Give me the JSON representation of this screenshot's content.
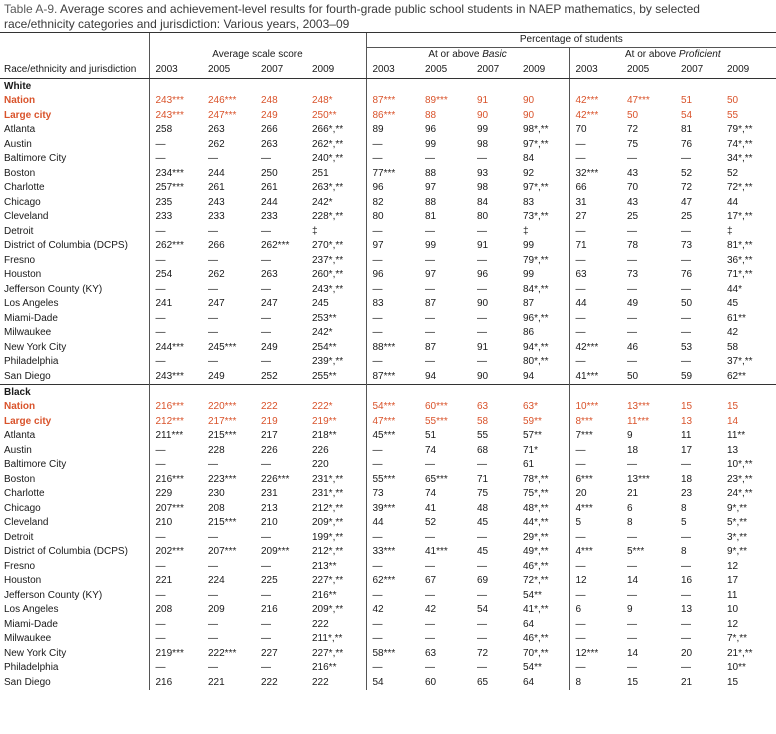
{
  "caption": {
    "table_no": "Table A-9.",
    "title": "Average scores and achievement-level results for fourth-grade public school students in NAEP mathematics, by selected race/ethnicity categories and jurisdiction: Various years, 2003–09"
  },
  "header": {
    "pct_students": "Percentage of students",
    "avg_scale": "Average scale score",
    "basic_prefix": "At or above ",
    "basic_word": "Basic",
    "prof_prefix": "At or above ",
    "prof_word": "Proficient",
    "first_col": "Race/ethnicity and jurisdiction",
    "years": [
      "2003",
      "2005",
      "2007",
      "2009"
    ]
  },
  "groups": [
    {
      "label": "White",
      "rows": [
        {
          "name": "Nation",
          "hl": true,
          "v": [
            "243***",
            "246***",
            "248",
            "248*",
            "87***",
            "89***",
            "91",
            "90",
            "42***",
            "47***",
            "51",
            "50"
          ]
        },
        {
          "name": "Large city",
          "hl": true,
          "v": [
            "243***",
            "247***",
            "249",
            "250**",
            "86***",
            "88",
            "90",
            "90",
            "42***",
            "50",
            "54",
            "55"
          ]
        },
        {
          "name": "Atlanta",
          "v": [
            "258",
            "263",
            "266",
            "266*,**",
            "89",
            "96",
            "99",
            "98*,**",
            "70",
            "72",
            "81",
            "79*,**"
          ]
        },
        {
          "name": "Austin",
          "v": [
            "—",
            "262",
            "263",
            "262*,**",
            "—",
            "99",
            "98",
            "97*,**",
            "—",
            "75",
            "76",
            "74*,**"
          ]
        },
        {
          "name": "Baltimore City",
          "v": [
            "—",
            "—",
            "—",
            "240*,**",
            "—",
            "—",
            "—",
            "84",
            "—",
            "—",
            "—",
            "34*,**"
          ]
        },
        {
          "name": "Boston",
          "v": [
            "234***",
            "244",
            "250",
            "251",
            "77***",
            "88",
            "93",
            "92",
            "32***",
            "43",
            "52",
            "52"
          ]
        },
        {
          "name": "Charlotte",
          "v": [
            "257***",
            "261",
            "261",
            "263*,**",
            "96",
            "97",
            "98",
            "97*,**",
            "66",
            "70",
            "72",
            "72*,**"
          ]
        },
        {
          "name": "Chicago",
          "v": [
            "235",
            "243",
            "244",
            "242*",
            "82",
            "88",
            "84",
            "83",
            "31",
            "43",
            "47",
            "44"
          ]
        },
        {
          "name": "Cleveland",
          "v": [
            "233",
            "233",
            "233",
            "228*,**",
            "80",
            "81",
            "80",
            "73*,**",
            "27",
            "25",
            "25",
            "17*,**"
          ]
        },
        {
          "name": "Detroit",
          "v": [
            "—",
            "—",
            "—",
            "‡",
            "—",
            "—",
            "—",
            "‡",
            "—",
            "—",
            "—",
            "‡"
          ]
        },
        {
          "name": "District of Columbia (DCPS)",
          "v": [
            "262***",
            "266",
            "262***",
            "270*,**",
            "97",
            "99",
            "91",
            "99",
            "71",
            "78",
            "73",
            "81*,**"
          ]
        },
        {
          "name": "Fresno",
          "v": [
            "—",
            "—",
            "—",
            "237*,**",
            "—",
            "—",
            "—",
            "79*,**",
            "—",
            "—",
            "—",
            "36*,**"
          ]
        },
        {
          "name": "Houston",
          "v": [
            "254",
            "262",
            "263",
            "260*,**",
            "96",
            "97",
            "96",
            "99",
            "63",
            "73",
            "76",
            "71*,**"
          ]
        },
        {
          "name": "Jefferson County (KY)",
          "v": [
            "—",
            "—",
            "—",
            "243*,**",
            "—",
            "—",
            "—",
            "84*,**",
            "—",
            "—",
            "—",
            "44*"
          ]
        },
        {
          "name": "Los Angeles",
          "v": [
            "241",
            "247",
            "247",
            "245",
            "83",
            "87",
            "90",
            "87",
            "44",
            "49",
            "50",
            "45"
          ]
        },
        {
          "name": "Miami-Dade",
          "v": [
            "—",
            "—",
            "—",
            "253**",
            "—",
            "—",
            "—",
            "96*,**",
            "—",
            "—",
            "—",
            "61**"
          ]
        },
        {
          "name": "Milwaukee",
          "v": [
            "—",
            "—",
            "—",
            "242*",
            "—",
            "—",
            "—",
            "86",
            "—",
            "—",
            "—",
            "42"
          ]
        },
        {
          "name": "New York City",
          "v": [
            "244***",
            "245***",
            "249",
            "254**",
            "88***",
            "87",
            "91",
            "94*,**",
            "42***",
            "46",
            "53",
            "58"
          ]
        },
        {
          "name": "Philadelphia",
          "v": [
            "—",
            "—",
            "—",
            "239*,**",
            "—",
            "—",
            "—",
            "80*,**",
            "—",
            "—",
            "—",
            "37*,**"
          ]
        },
        {
          "name": "San Diego",
          "v": [
            "243***",
            "249",
            "252",
            "255**",
            "87***",
            "94",
            "90",
            "94",
            "41***",
            "50",
            "59",
            "62**"
          ]
        }
      ]
    },
    {
      "label": "Black",
      "rows": [
        {
          "name": "Nation",
          "hl": true,
          "v": [
            "216***",
            "220***",
            "222",
            "222*",
            "54***",
            "60***",
            "63",
            "63*",
            "10***",
            "13***",
            "15",
            "15"
          ]
        },
        {
          "name": "Large city",
          "hl": true,
          "v": [
            "212***",
            "217***",
            "219",
            "219**",
            "47***",
            "55***",
            "58",
            "59**",
            "8***",
            "11***",
            "13",
            "14"
          ]
        },
        {
          "name": "Atlanta",
          "v": [
            "211***",
            "215***",
            "217",
            "218**",
            "45***",
            "51",
            "55",
            "57**",
            "7***",
            "9",
            "11",
            "11**"
          ]
        },
        {
          "name": "Austin",
          "v": [
            "—",
            "228",
            "226",
            "226",
            "—",
            "74",
            "68",
            "71*",
            "—",
            "18",
            "17",
            "13"
          ]
        },
        {
          "name": "Baltimore City",
          "v": [
            "—",
            "—",
            "—",
            "220",
            "—",
            "—",
            "—",
            "61",
            "—",
            "—",
            "—",
            "10*,**"
          ]
        },
        {
          "name": "Boston",
          "v": [
            "216***",
            "223***",
            "226***",
            "231*,**",
            "55***",
            "65***",
            "71",
            "78*,**",
            "6***",
            "13***",
            "18",
            "23*,**"
          ]
        },
        {
          "name": "Charlotte",
          "v": [
            "229",
            "230",
            "231",
            "231*,**",
            "73",
            "74",
            "75",
            "75*,**",
            "20",
            "21",
            "23",
            "24*,**"
          ]
        },
        {
          "name": "Chicago",
          "v": [
            "207***",
            "208",
            "213",
            "212*,**",
            "39***",
            "41",
            "48",
            "48*,**",
            "4***",
            "6",
            "8",
            "9*,**"
          ]
        },
        {
          "name": "Cleveland",
          "v": [
            "210",
            "215***",
            "210",
            "209*,**",
            "44",
            "52",
            "45",
            "44*,**",
            "5",
            "8",
            "5",
            "5*,**"
          ]
        },
        {
          "name": "Detroit",
          "v": [
            "—",
            "—",
            "—",
            "199*,**",
            "—",
            "—",
            "—",
            "29*,**",
            "—",
            "—",
            "—",
            "3*,**"
          ]
        },
        {
          "name": "District of Columbia (DCPS)",
          "v": [
            "202***",
            "207***",
            "209***",
            "212*,**",
            "33***",
            "41***",
            "45",
            "49*,**",
            "4***",
            "5***",
            "8",
            "9*,**"
          ]
        },
        {
          "name": "Fresno",
          "v": [
            "—",
            "—",
            "—",
            "213**",
            "—",
            "—",
            "—",
            "46*,**",
            "—",
            "—",
            "—",
            "12"
          ]
        },
        {
          "name": "Houston",
          "v": [
            "221",
            "224",
            "225",
            "227*,**",
            "62***",
            "67",
            "69",
            "72*,**",
            "12",
            "14",
            "16",
            "17"
          ]
        },
        {
          "name": "Jefferson County (KY)",
          "v": [
            "—",
            "—",
            "—",
            "216**",
            "—",
            "—",
            "—",
            "54**",
            "—",
            "—",
            "—",
            "11"
          ]
        },
        {
          "name": "Los Angeles",
          "v": [
            "208",
            "209",
            "216",
            "209*,**",
            "42",
            "42",
            "54",
            "41*,**",
            "6",
            "9",
            "13",
            "10"
          ]
        },
        {
          "name": "Miami-Dade",
          "v": [
            "—",
            "—",
            "—",
            "222",
            "—",
            "—",
            "—",
            "64",
            "—",
            "—",
            "—",
            "12"
          ]
        },
        {
          "name": "Milwaukee",
          "v": [
            "—",
            "—",
            "—",
            "211*,**",
            "—",
            "—",
            "—",
            "46*,**",
            "—",
            "—",
            "—",
            "7*,**"
          ]
        },
        {
          "name": "New York City",
          "v": [
            "219***",
            "222***",
            "227",
            "227*,**",
            "58***",
            "63",
            "72",
            "70*,**",
            "12***",
            "14",
            "20",
            "21*,**"
          ]
        },
        {
          "name": "Philadelphia",
          "v": [
            "—",
            "—",
            "—",
            "216**",
            "—",
            "—",
            "—",
            "54**",
            "—",
            "—",
            "—",
            "10**"
          ]
        },
        {
          "name": "San Diego",
          "v": [
            "216",
            "221",
            "222",
            "222",
            "54",
            "60",
            "65",
            "64",
            "8",
            "15",
            "21",
            "15"
          ]
        }
      ]
    }
  ],
  "colors": {
    "highlight": "#d9532b",
    "caption_text": "#3a3a3a"
  }
}
